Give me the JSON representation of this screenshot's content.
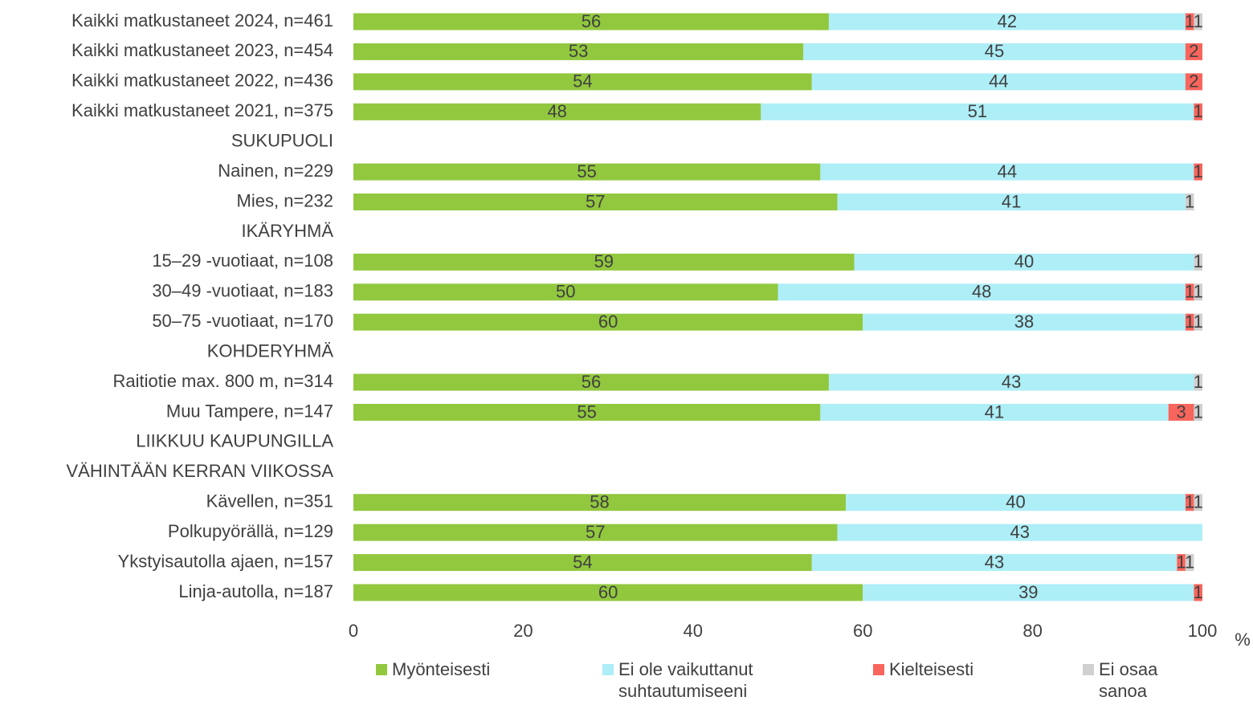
{
  "chart_data": {
    "type": "stacked_barh",
    "categories": [
      "Kaikki matkustaneet 2024, n=461",
      "Kaikki matkustaneet 2023, n=454",
      "Kaikki matkustaneet 2022, n=436",
      "Kaikki matkustaneet 2021, n=375",
      "SUKUPUOLI",
      "Nainen, n=229",
      "Mies, n=232",
      "IKÄRYHMÄ",
      "15–29 -vuotiaat, n=108",
      "30–49 -vuotiaat, n=183",
      "50–75 -vuotiaat, n=170",
      "KOHDERYHMÄ",
      "Raitiotie max. 800 m, n=314",
      "Muu Tampere, n=147",
      "LIIKKUU KAUPUNGILLA",
      "VÄHINTÄÄN KERRAN VIIKOSSA",
      "Kävellen, n=351",
      "Polkupyörällä, n=129",
      "Ykstyisautolla ajaen, n=157",
      "Linja-autolla, n=187"
    ],
    "series": [
      {
        "name": "Myönteisesti",
        "color": "#92c83e",
        "values": [
          56,
          53,
          54,
          48,
          null,
          55,
          57,
          null,
          59,
          50,
          60,
          null,
          56,
          55,
          null,
          null,
          58,
          57,
          54,
          60
        ]
      },
      {
        "name": "Ei ole vaikuttanut suhtautumiseeni",
        "color": "#aeeef7",
        "values": [
          42,
          45,
          44,
          51,
          null,
          44,
          41,
          null,
          40,
          48,
          38,
          null,
          43,
          41,
          null,
          null,
          40,
          43,
          43,
          39
        ]
      },
      {
        "name": "Kielteisesti",
        "color": "#f8655c",
        "values": [
          1,
          2,
          2,
          1,
          null,
          1,
          null,
          null,
          null,
          1,
          1,
          null,
          null,
          3,
          null,
          null,
          1,
          null,
          1,
          1
        ]
      },
      {
        "name": "Ei osaa sanoa",
        "color": "#d0d0d0",
        "values": [
          1,
          null,
          null,
          null,
          null,
          null,
          1,
          null,
          1,
          1,
          1,
          null,
          1,
          1,
          null,
          null,
          1,
          null,
          1,
          null
        ]
      }
    ],
    "xlim": [
      0,
      100
    ],
    "xticks": [
      0,
      20,
      40,
      60,
      80,
      100
    ],
    "xlabel": "%",
    "legend": "bottom"
  }
}
